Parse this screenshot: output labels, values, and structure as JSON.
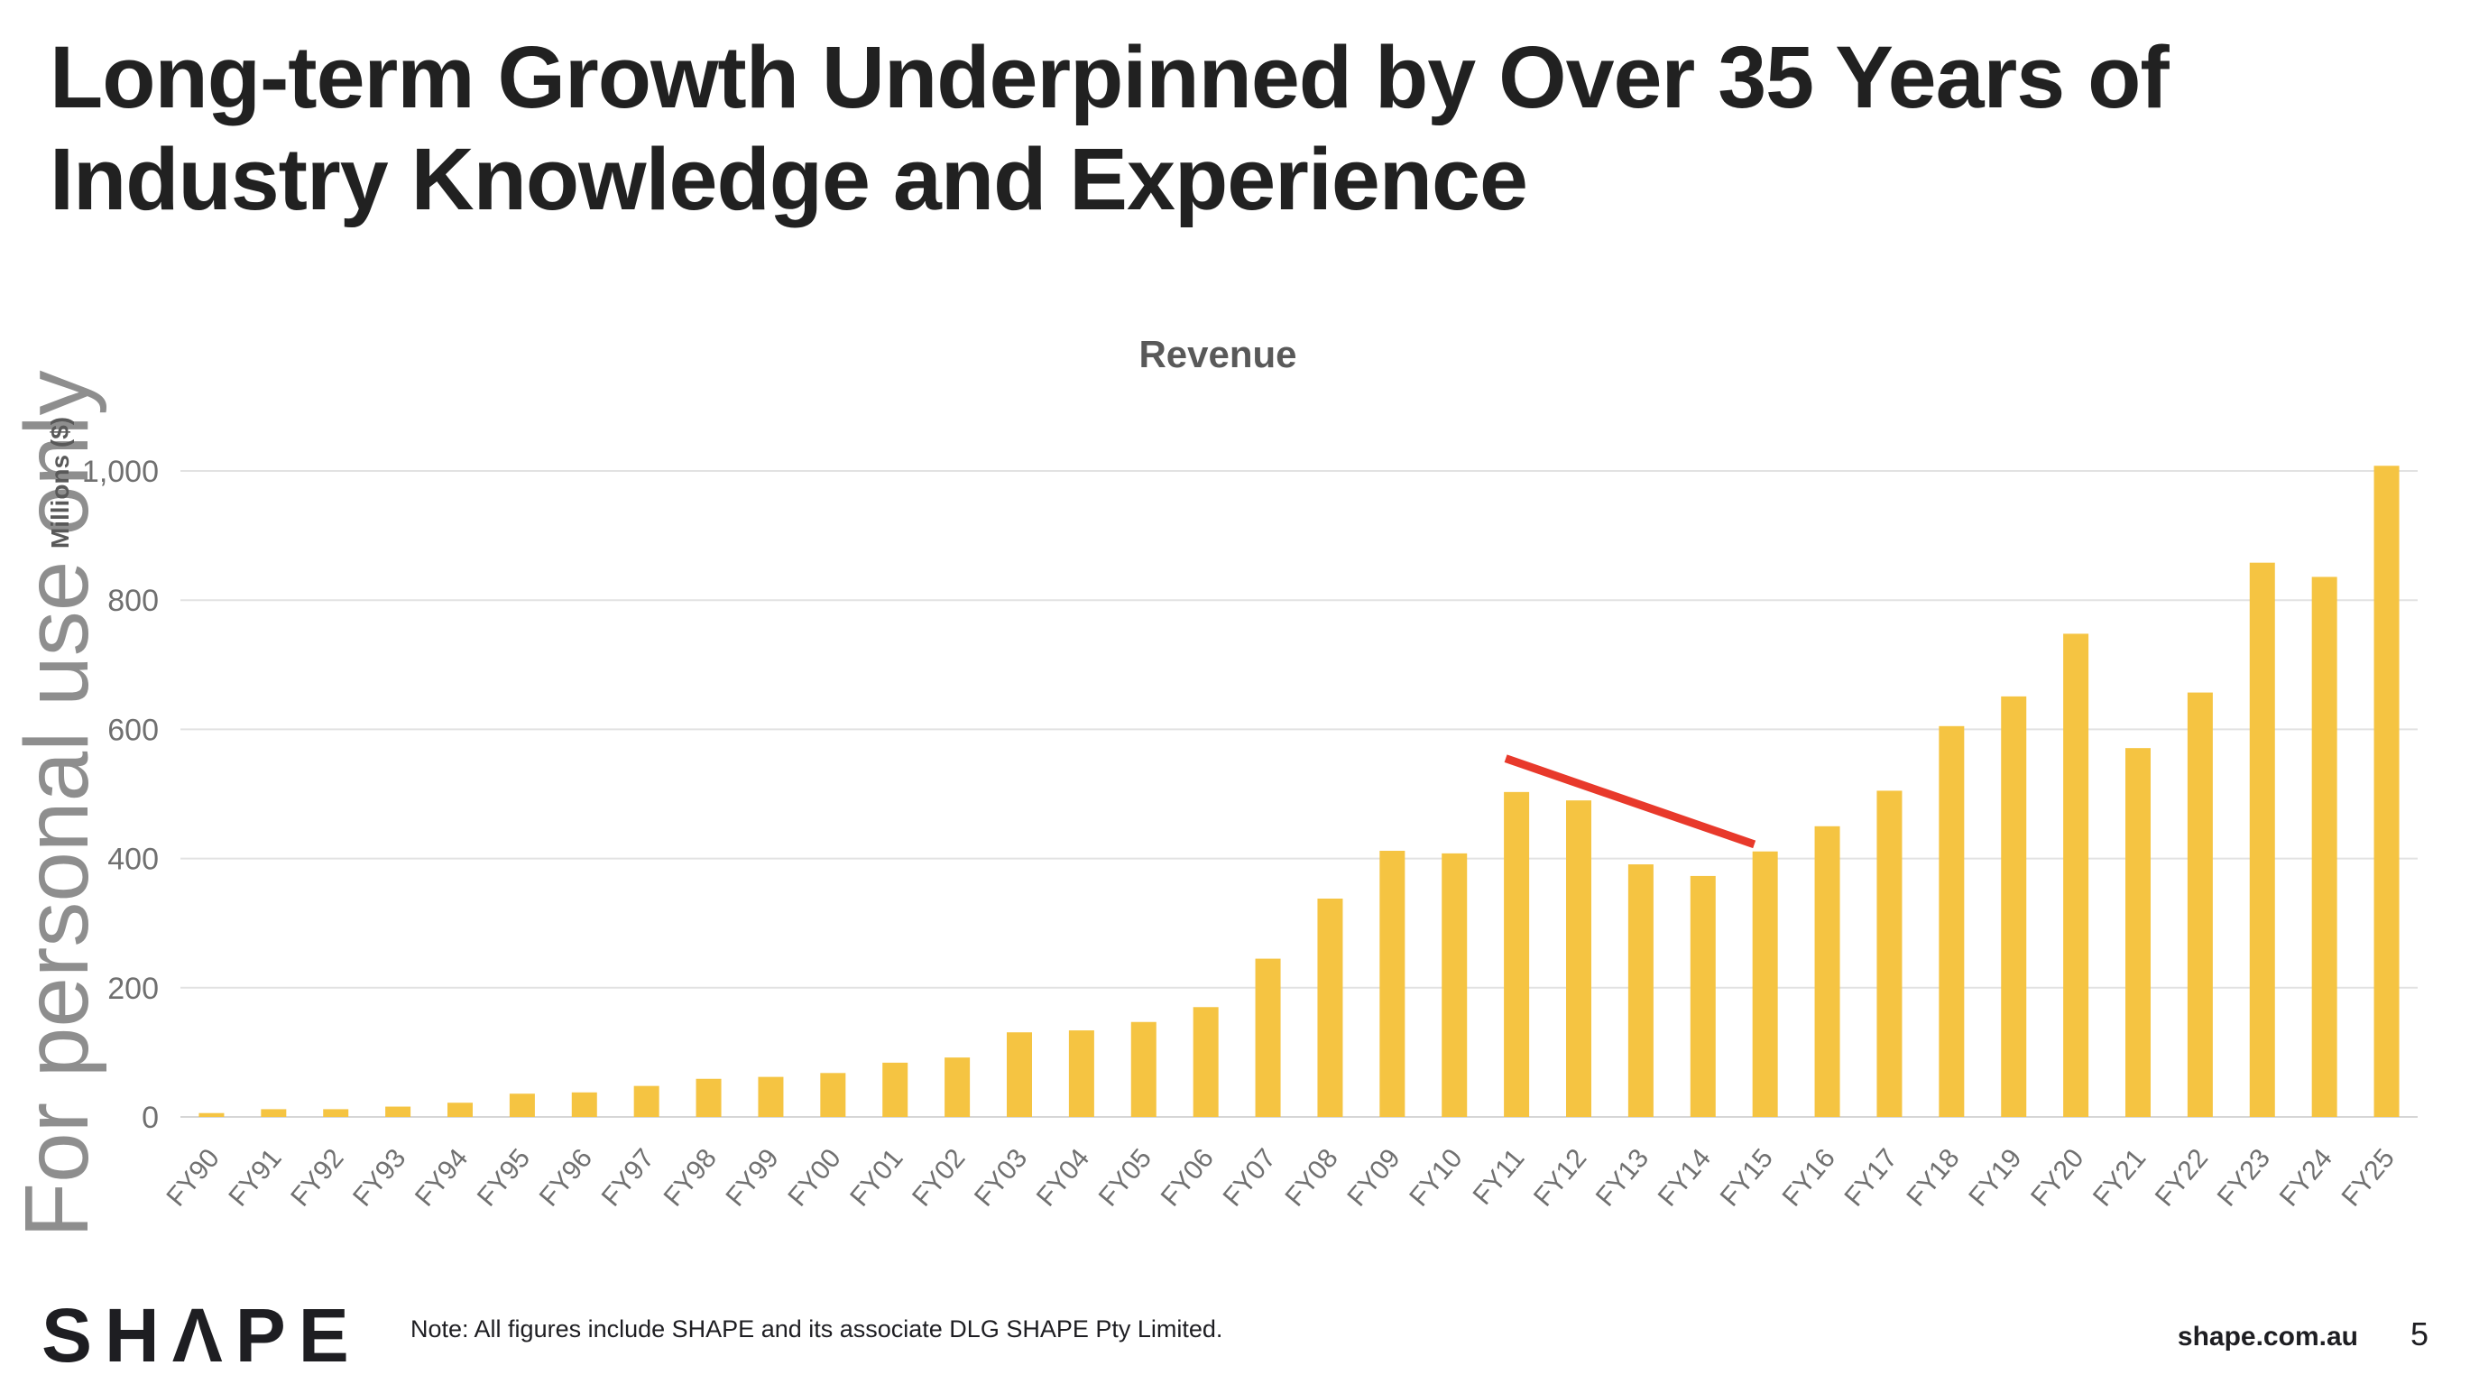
{
  "slide": {
    "title": "Long-term Growth Underpinned by Over 35 Years of Industry Knowledge and Experience",
    "watermark": "For personal use only",
    "footer": {
      "logo": "SHΛPE",
      "note": "Note: All figures include SHAPE and its associate DLG SHAPE Pty Limited.",
      "website": "shape.com.au",
      "page_number": "5"
    }
  },
  "colors": {
    "bar_yellow": "#F5C442",
    "annotation_red": "#E8392B",
    "title_dark": "#212121",
    "chart_title_gray": "#595959",
    "tick_gray": "#707070",
    "gridline_gray": "#E2E2E2",
    "baseline_gray": "#D6D6D6",
    "watermark_gray": "#8E8E8E"
  },
  "chart_data": {
    "type": "bar",
    "title": "Revenue",
    "xlabel": "",
    "ylabel": "Millions ($)",
    "legend_position": "none",
    "grid": true,
    "ylim": [
      0,
      1100
    ],
    "yticks": [
      0,
      200,
      400,
      600,
      800,
      1000
    ],
    "ytick_labels": [
      "0",
      "200",
      "400",
      "600",
      "800",
      "1,000"
    ],
    "categories": [
      "FY90",
      "FY91",
      "FY92",
      "FY93",
      "FY94",
      "FY95",
      "FY96",
      "FY97",
      "FY98",
      "FY99",
      "FY00",
      "FY01",
      "FY02",
      "FY03",
      "FY04",
      "FY05",
      "FY06",
      "FY07",
      "FY08",
      "FY09",
      "FY10",
      "FY11",
      "FY12",
      "FY13",
      "FY14",
      "FY15",
      "FY16",
      "FY17",
      "FY18",
      "FY19",
      "FY20",
      "FY21",
      "FY22",
      "FY23",
      "FY24",
      "FY25"
    ],
    "values": [
      6,
      12,
      12,
      16,
      22,
      36,
      38,
      48,
      59,
      62,
      68,
      84,
      92,
      131,
      134,
      147,
      170,
      245,
      338,
      412,
      408,
      503,
      490,
      391,
      373,
      411,
      450,
      505,
      605,
      651,
      748,
      571,
      657,
      858,
      836,
      1008
    ],
    "annotation": {
      "type": "trend-line",
      "description": "red decline line from FY11 to FY15",
      "from": {
        "category": "FY11",
        "value": 555
      },
      "to": {
        "category": "FY15",
        "value": 422
      }
    }
  }
}
